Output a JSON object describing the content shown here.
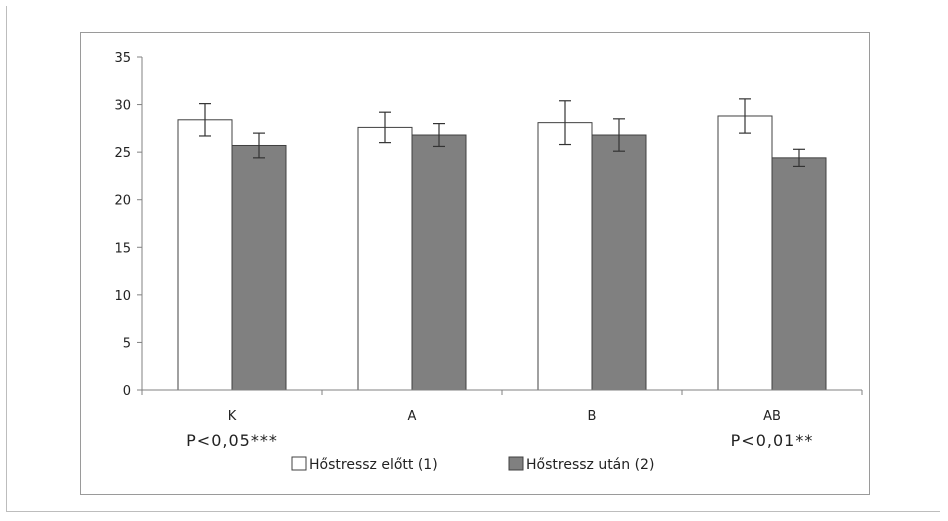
{
  "chart_data": {
    "type": "bar",
    "categories": [
      "K",
      "A",
      "B",
      "AB"
    ],
    "series": [
      {
        "name": "Hőstressz előtt (1)",
        "color": "#ffffff",
        "values": [
          28.4,
          27.6,
          28.1,
          28.8
        ],
        "errors": [
          1.7,
          1.6,
          2.3,
          1.8
        ]
      },
      {
        "name": "Hőstressz után (2)",
        "color": "#808080",
        "values": [
          25.7,
          26.8,
          26.8,
          24.4
        ],
        "errors": [
          1.3,
          1.2,
          1.7,
          0.9
        ]
      }
    ],
    "ylim": [
      0,
      35
    ],
    "yticks": [
      "0",
      "5",
      "10",
      "15",
      "20",
      "25",
      "30",
      "35"
    ],
    "annotations": [
      {
        "category": "K",
        "text": "P<0,05***"
      },
      {
        "category": "AB",
        "text": "P<0,01**"
      }
    ],
    "legend_position": "bottom",
    "grid": false
  }
}
